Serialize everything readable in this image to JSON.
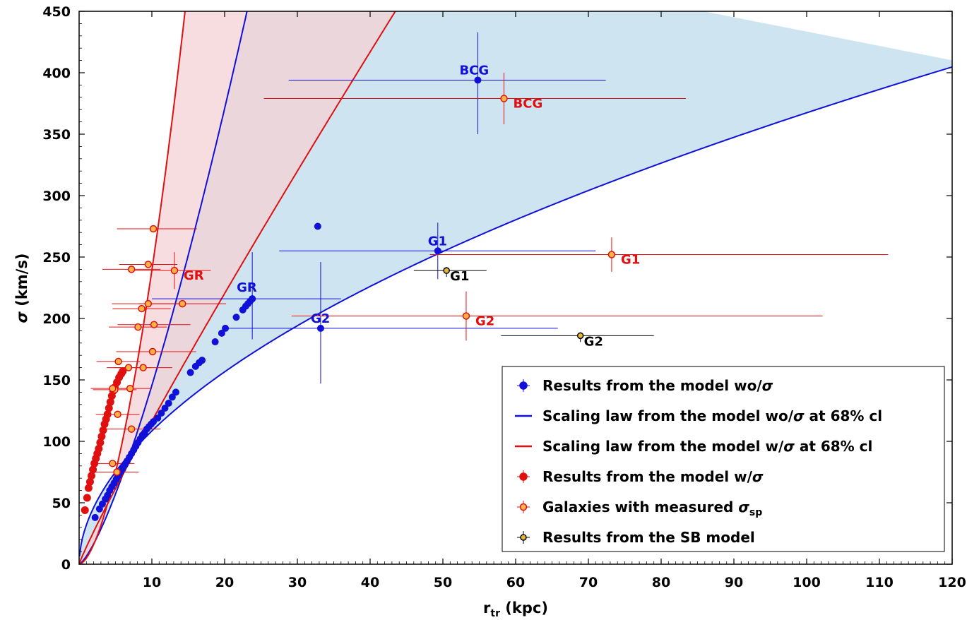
{
  "chart_data": {
    "type": "scatter",
    "xlabel_main": "r",
    "xlabel_sub": "tr",
    "xlabel_unit": " (kpc)",
    "ylabel_symbol": "σ",
    "ylabel_unit": " (km/s)",
    "xlim": [
      0,
      120
    ],
    "ylim": [
      0,
      450
    ],
    "x_ticks": [
      10,
      20,
      30,
      40,
      50,
      60,
      70,
      80,
      90,
      100,
      110,
      120
    ],
    "y_ticks": [
      0,
      50,
      100,
      150,
      200,
      250,
      300,
      350,
      400,
      450
    ],
    "grid": false,
    "legend_position": "bottom-right",
    "colors": {
      "blue": "#1010d8",
      "red": "#e01010",
      "orange_fill": "#ffb347",
      "gold_fill": "#e8b830",
      "band_blue": "#cfe4f1",
      "band_red": "#f4d2d4",
      "band_overlap": "#d9c3cf"
    },
    "scaling_laws": {
      "blue_low": {
        "A": 32.0,
        "p": 0.53
      },
      "blue_high": {
        "A": 6.5,
        "p": 1.35
      },
      "red_low": {
        "A": 14.0,
        "p": 0.92
      },
      "red_high": {
        "A": 5.0,
        "p": 1.68
      }
    },
    "series_blue_model": {
      "x": [
        2.2,
        2.8,
        3.2,
        3.6,
        3.9,
        4.2,
        4.5,
        4.8,
        5.1,
        5.4,
        5.7,
        6.0,
        6.3,
        6.6,
        6.9,
        7.2,
        7.5,
        7.8,
        8.1,
        8.4,
        8.7,
        9.0,
        9.3,
        9.6,
        9.9,
        10.2,
        10.8,
        11.3,
        11.8,
        12.3,
        12.8,
        13.3,
        15.3,
        16.0,
        16.5,
        16.9,
        18.7,
        19.6,
        20.1,
        21.6,
        22.5,
        22.9,
        23.2,
        23.5,
        23.8,
        32.8
      ],
      "y": [
        38,
        45,
        49,
        53,
        56,
        60,
        63,
        66,
        69,
        72,
        75,
        78,
        81,
        84,
        87,
        90,
        93,
        96,
        99,
        102,
        105,
        107,
        110,
        112,
        114,
        116,
        119,
        123,
        127,
        131,
        136,
        140,
        156,
        161,
        164,
        166,
        181,
        188,
        192,
        201,
        207,
        210,
        212,
        214,
        216,
        275
      ]
    },
    "series_red_model": {
      "x": [
        0.8,
        1.1,
        1.3,
        1.5,
        1.7,
        1.9,
        2.1,
        2.3,
        2.5,
        2.7,
        2.9,
        3.1,
        3.3,
        3.5,
        3.7,
        3.9,
        4.1,
        4.3,
        4.5,
        4.7,
        4.9,
        5.2,
        5.5,
        5.8,
        6.0
      ],
      "y": [
        44,
        54,
        62,
        67,
        72,
        77,
        82,
        86,
        90,
        94,
        99,
        104,
        109,
        114,
        118,
        122,
        127,
        132,
        137,
        141,
        144,
        148,
        152,
        155,
        157
      ]
    },
    "galaxies_measured": {
      "x": [
        10.2,
        9.5,
        7.2,
        13.1,
        9.5,
        8.6,
        14.2,
        10.3,
        8.1,
        10.1,
        5.4,
        6.8,
        8.8,
        4.9,
        4.6,
        7.0,
        5.3,
        7.2,
        4.6,
        5.2,
        73.2,
        53.2,
        58.4
      ],
      "y": [
        273,
        244,
        240,
        239,
        212,
        208,
        212,
        195,
        193,
        173,
        165,
        160,
        160,
        142,
        143,
        143,
        122,
        110,
        82,
        75,
        252,
        202,
        379
      ],
      "xerr_lo": [
        5,
        4,
        4,
        6,
        5,
        4,
        6,
        5,
        4,
        5,
        3,
        3,
        4,
        3,
        3,
        3,
        3,
        4,
        3,
        3,
        25,
        24,
        33
      ],
      "xerr_hi": [
        6,
        4,
        4,
        5,
        5,
        4,
        6,
        5,
        4,
        6,
        3,
        3,
        4,
        3,
        3,
        3,
        3,
        4,
        3,
        3,
        38,
        49,
        25
      ]
    },
    "labeled_points_blue": [
      {
        "label": "BCG",
        "x": 54.8,
        "y": 394,
        "xlo": 28.8,
        "xhi": 72.4,
        "ylo": 350,
        "yhi": 433
      },
      {
        "label": "G1",
        "x": 49.3,
        "y": 255,
        "xlo": 27.5,
        "xhi": 71.0,
        "ylo": 232,
        "yhi": 278
      },
      {
        "label": "GR",
        "x": 23.8,
        "y": 216,
        "xlo": 10.0,
        "xhi": 36.0,
        "ylo": 183,
        "yhi": 254
      },
      {
        "label": "G2",
        "x": 33.2,
        "y": 192,
        "xlo": 20.0,
        "xhi": 65.8,
        "ylo": 147,
        "yhi": 246
      }
    ],
    "labeled_points_red": [
      {
        "label": "BCG",
        "x": 58.4,
        "y": 379,
        "ylo": 358,
        "yhi": 400
      },
      {
        "label": "G1",
        "x": 73.2,
        "y": 252,
        "ylo": 238,
        "yhi": 266
      },
      {
        "label": "G2",
        "x": 53.2,
        "y": 202,
        "ylo": 182,
        "yhi": 222
      },
      {
        "label": "GR",
        "x": 13.1,
        "y": 239,
        "ylo": 224,
        "yhi": 254
      }
    ],
    "sb_model": [
      {
        "label": "G1",
        "x": 50.5,
        "y": 239,
        "xlo": 46.0,
        "xhi": 56.0
      },
      {
        "label": "G2",
        "x": 68.9,
        "y": 186,
        "xlo": 58.0,
        "xhi": 79.0
      }
    ],
    "legend": [
      {
        "kind": "blue-dot",
        "text_pre": "Results from the model wo/",
        "text_sym": "σ",
        "text_post": "",
        "text_sub": ""
      },
      {
        "kind": "blue-line",
        "text_pre": "Scaling law from the model wo/",
        "text_sym": "σ",
        "text_post": " at 68% cl",
        "text_sub": ""
      },
      {
        "kind": "red-line",
        "text_pre": "Scaling law from the model w/",
        "text_sym": "σ",
        "text_post": " at 68% cl",
        "text_sub": ""
      },
      {
        "kind": "red-dot",
        "text_pre": "Results from the model w/",
        "text_sym": "σ",
        "text_post": "",
        "text_sub": ""
      },
      {
        "kind": "orange-dot",
        "text_pre": "Galaxies with measured ",
        "text_sym": "σ",
        "text_post": "",
        "text_sub": "sp"
      },
      {
        "kind": "gold-dot",
        "text_pre": "Results from the SB model",
        "text_sym": "",
        "text_post": "",
        "text_sub": ""
      }
    ]
  }
}
